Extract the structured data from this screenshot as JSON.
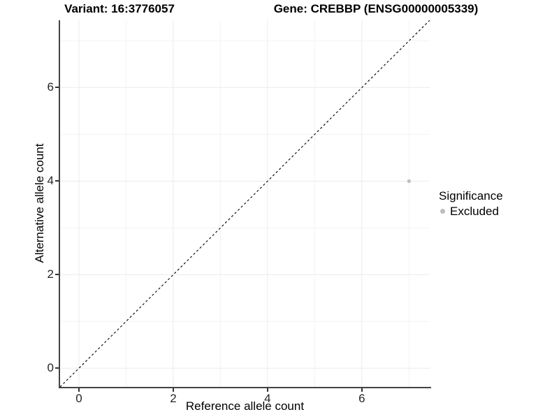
{
  "header": {
    "variant_title": "Variant: 16:3776057",
    "gene_title": "Gene: CREBBP (ENSG00000005339)"
  },
  "chart_data": {
    "type": "scatter",
    "title_left": "Variant: 16:3776057",
    "title_right": "Gene: CREBBP (ENSG00000005339)",
    "xlabel": "Reference allele count",
    "ylabel": "Alternative allele count",
    "xticks": [
      0,
      2,
      4,
      6
    ],
    "yticks": [
      0,
      2,
      4,
      6
    ],
    "minor_gridlines": [
      1,
      3,
      5,
      7
    ],
    "xlim": [
      -0.4,
      7.44
    ],
    "ylim": [
      -0.4,
      7.44
    ],
    "grid": true,
    "points": [
      {
        "x": 7,
        "y": 4,
        "series": "Excluded"
      }
    ],
    "point_color": "#bdbdbd",
    "point_radius": 2.6,
    "identity_line": {
      "slope": 1,
      "intercept": 0,
      "linestyle": "dashed",
      "color": "#000000"
    },
    "legend_position": "right"
  },
  "legend": {
    "title": "Significance",
    "items": [
      {
        "label": "Excluded",
        "color": "#bdbdbd"
      }
    ]
  },
  "colors": {
    "background": "#ffffff",
    "grid_major": "#ebebeb",
    "grid_minor": "#f3f3f3",
    "axis_line": "#444444",
    "tick_text": "#262626",
    "point": "#bdbdbd"
  }
}
